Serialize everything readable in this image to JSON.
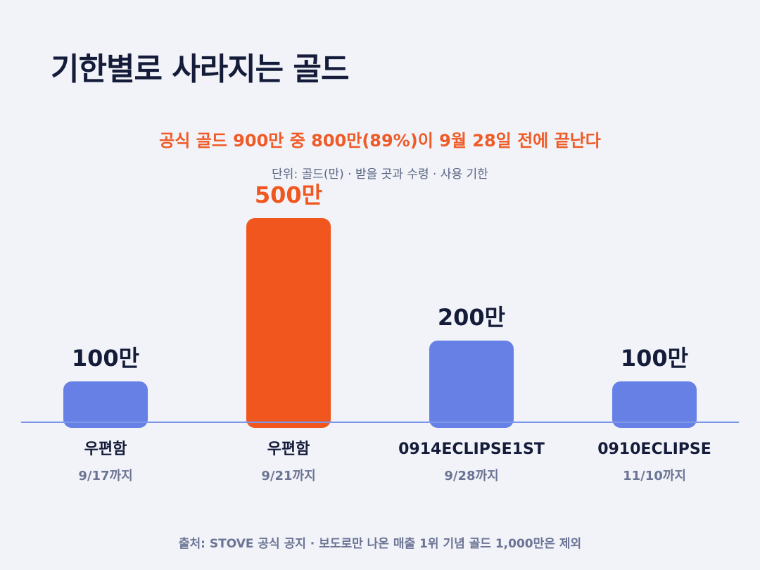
{
  "title": "기한별로 사라지는 골드",
  "subtitle": "공식 골드 900만 중 800만(89%)이 9월 28일 전에 끝난다",
  "unit_note": "단위: 골드(만) · 받을 곳과 수령 · 사용 기한",
  "source": "출처: STOVE 공식 공지 · 보도로만 나온 매출 1위 기념 골드 1,000만은 제외",
  "colors": {
    "background": "#f2f3f8",
    "bar_default": "#6680e6",
    "bar_highlight": "#f0561e",
    "label_default": "#141c3a",
    "label_highlight": "#f0561e",
    "subtitle": "#ef5a26",
    "baseline": "#7c97ea",
    "date_text": "#6b7494"
  },
  "chart_data": {
    "type": "bar",
    "categories": [
      "우편함",
      "우편함",
      "0914ECLIPSE1ST",
      "0910ECLIPSE"
    ],
    "sub_labels": [
      "9/17까지",
      "9/21까지",
      "9/28까지",
      "11/10까지"
    ],
    "values": [
      100,
      500,
      200,
      100
    ],
    "value_labels": [
      "100만",
      "500만",
      "200만",
      "100만"
    ],
    "highlight_index": 1,
    "ylim": [
      0,
      500
    ],
    "grid": false,
    "legend": "none"
  }
}
